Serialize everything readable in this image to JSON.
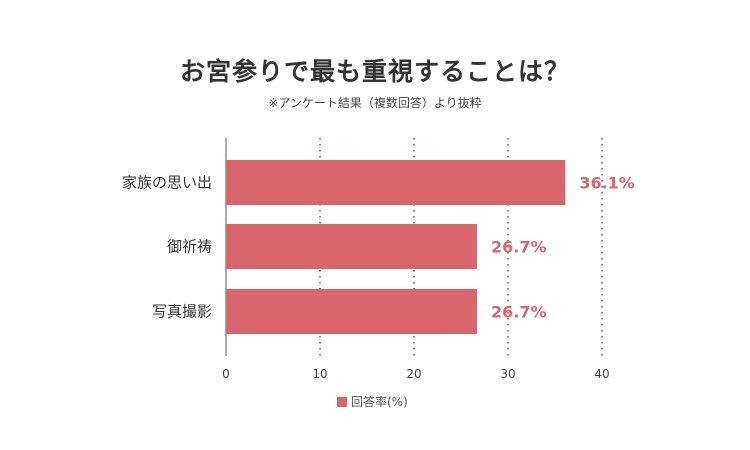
{
  "chart_data": {
    "type": "bar",
    "orientation": "horizontal",
    "title": "お宮参りで最も重視することは？",
    "subtitle": "※アンケート結果（複数回答）より抜粋",
    "categories": [
      "家族の思い出",
      "御祈祷",
      "写真撮影"
    ],
    "series": [
      {
        "name": "回答率(%)",
        "values": [
          36.1,
          26.7,
          26.7
        ],
        "labels": [
          "36.1%",
          "26.7%",
          "26.7%"
        ]
      }
    ],
    "xlim": [
      0,
      40
    ],
    "xticks": [
      "0",
      "10",
      "20",
      "30",
      "40"
    ],
    "grid": true,
    "legend": "bottom",
    "colors": {
      "bar": "#d9666c",
      "label": "#d9666c",
      "grid": "#444444"
    }
  }
}
